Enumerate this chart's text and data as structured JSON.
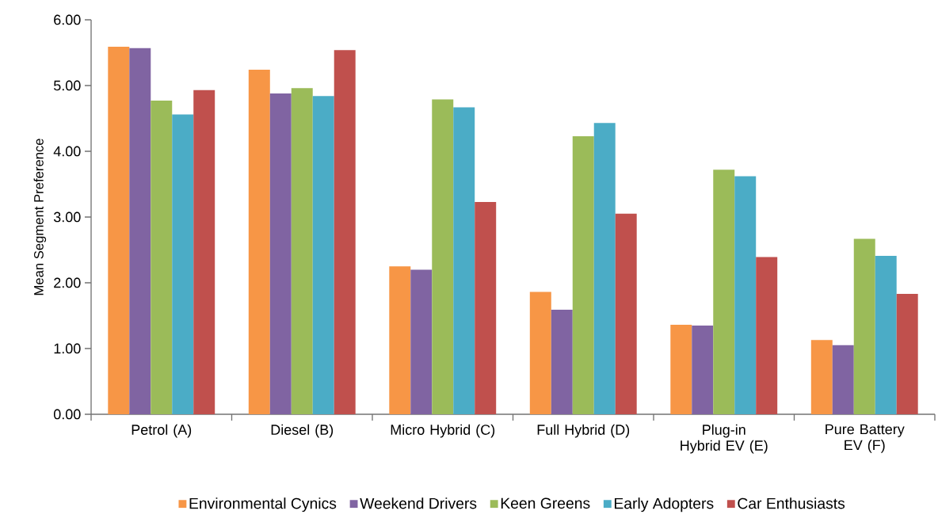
{
  "chart_data": {
    "type": "bar",
    "ylabel": "Mean Segment Preference",
    "categories": [
      "Petrol (A)",
      "Diesel (B)",
      "Micro Hybrid (C)",
      "Full Hybrid (D)",
      "Plug-in Hybrid EV (E)",
      "Pure Battery EV (F)"
    ],
    "series": [
      {
        "name": "Environmental Cynics",
        "color": "#f79646",
        "values": [
          5.59,
          5.24,
          2.25,
          1.86,
          1.36,
          1.13
        ]
      },
      {
        "name": "Weekend Drivers",
        "color": "#8064a2",
        "values": [
          5.57,
          4.88,
          2.2,
          1.59,
          1.35,
          1.05
        ]
      },
      {
        "name": "Keen Greens",
        "color": "#9bbb59",
        "values": [
          4.77,
          4.96,
          4.79,
          4.23,
          3.72,
          2.67
        ]
      },
      {
        "name": "Early Adopters",
        "color": "#4bacc6",
        "values": [
          4.56,
          4.84,
          4.67,
          4.43,
          3.62,
          2.41
        ]
      },
      {
        "name": "Car Enthusiasts",
        "color": "#c0504d",
        "values": [
          4.93,
          5.54,
          3.23,
          3.05,
          2.39,
          1.83
        ]
      }
    ],
    "ylim": [
      0,
      6
    ],
    "yticks": [
      {
        "value": 0,
        "label": "0.00"
      },
      {
        "value": 1,
        "label": "1.00"
      },
      {
        "value": 2,
        "label": "2.00"
      },
      {
        "value": 3,
        "label": "3.00"
      },
      {
        "value": 4,
        "label": "4.00"
      },
      {
        "value": 5,
        "label": "5.00"
      },
      {
        "value": 6,
        "label": "6.00"
      }
    ],
    "grid": false,
    "legend": "bottom"
  }
}
